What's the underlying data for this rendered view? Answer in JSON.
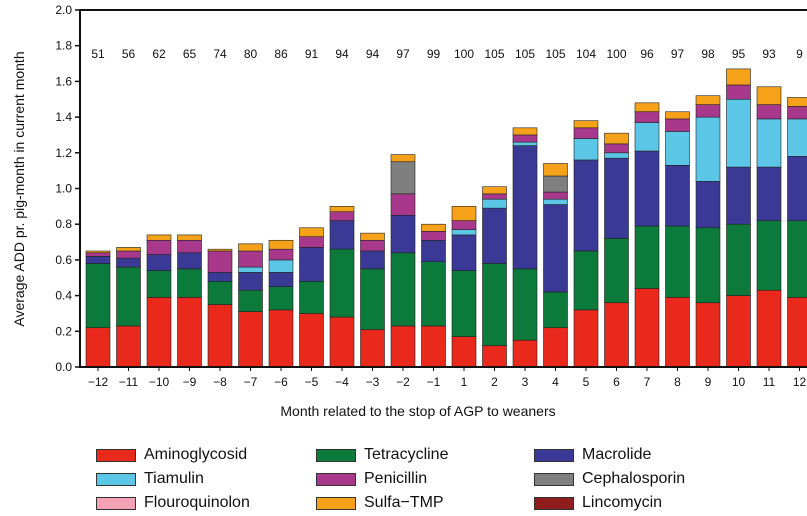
{
  "chart_data": {
    "type": "bar",
    "stacked": true,
    "xlabel": "Month related to the stop of AGP to weaners",
    "ylabel": "Average ADD pr. pig-month in current month",
    "ylim": [
      0,
      2.0
    ],
    "yticks": [
      "0.0",
      "0.2",
      "0.4",
      "0.6",
      "0.8",
      "1.0",
      "1.2",
      "1.4",
      "1.6",
      "1.8",
      "2.0"
    ],
    "categories": [
      "-12",
      "-11",
      "-10",
      "-9",
      "-8",
      "-7",
      "-6",
      "-5",
      "-4",
      "-3",
      "-2",
      "-1",
      "1",
      "2",
      "3",
      "4",
      "5",
      "6",
      "7",
      "8",
      "9",
      "10",
      "11",
      "12"
    ],
    "counts": [
      "51",
      "56",
      "62",
      "65",
      "74",
      "80",
      "86",
      "91",
      "94",
      "94",
      "97",
      "99",
      "100",
      "105",
      "105",
      "105",
      "104",
      "100",
      "96",
      "97",
      "98",
      "95",
      "93",
      "9"
    ],
    "series": [
      {
        "name": "Aminoglycosid",
        "color": "#e8291c",
        "values": [
          0.22,
          0.23,
          0.39,
          0.39,
          0.35,
          0.31,
          0.32,
          0.3,
          0.28,
          0.21,
          0.23,
          0.23,
          0.17,
          0.12,
          0.15,
          0.22,
          0.32,
          0.36,
          0.44,
          0.39,
          0.36,
          0.4,
          0.43,
          0.39
        ]
      },
      {
        "name": "Tetracycline",
        "color": "#0b7a3a",
        "values": [
          0.36,
          0.33,
          0.15,
          0.16,
          0.13,
          0.12,
          0.13,
          0.18,
          0.38,
          0.34,
          0.41,
          0.36,
          0.37,
          0.46,
          0.4,
          0.2,
          0.33,
          0.36,
          0.35,
          0.4,
          0.42,
          0.4,
          0.39,
          0.43
        ]
      },
      {
        "name": "Macrolide",
        "color": "#3a3a96",
        "values": [
          0.04,
          0.05,
          0.09,
          0.09,
          0.05,
          0.1,
          0.08,
          0.19,
          0.16,
          0.1,
          0.21,
          0.12,
          0.2,
          0.31,
          0.69,
          0.49,
          0.51,
          0.45,
          0.42,
          0.34,
          0.26,
          0.32,
          0.3,
          0.36
        ]
      },
      {
        "name": "Tiamulin",
        "color": "#5bc6e6",
        "values": [
          0.0,
          0.0,
          0.0,
          0.0,
          0.0,
          0.03,
          0.07,
          0.0,
          0.0,
          0.0,
          0.0,
          0.0,
          0.03,
          0.05,
          0.02,
          0.03,
          0.12,
          0.03,
          0.16,
          0.19,
          0.36,
          0.38,
          0.27,
          0.21
        ]
      },
      {
        "name": "Penicillin",
        "color": "#a8388c",
        "values": [
          0.02,
          0.04,
          0.08,
          0.07,
          0.12,
          0.09,
          0.06,
          0.06,
          0.05,
          0.06,
          0.12,
          0.05,
          0.05,
          0.03,
          0.04,
          0.04,
          0.06,
          0.05,
          0.06,
          0.07,
          0.07,
          0.08,
          0.08,
          0.07
        ]
      },
      {
        "name": "Cephalosporin",
        "color": "#7f7f7f",
        "values": [
          0.0,
          0.0,
          0.0,
          0.0,
          0.0,
          0.0,
          0.0,
          0.0,
          0.0,
          0.0,
          0.18,
          0.0,
          0.0,
          0.0,
          0.0,
          0.09,
          0.0,
          0.0,
          0.0,
          0.0,
          0.0,
          0.0,
          0.0,
          0.0
        ]
      },
      {
        "name": "Flouroquinolon",
        "color": "#f4a3b6",
        "values": [
          0.0,
          0.0,
          0.0,
          0.0,
          0.0,
          0.0,
          0.0,
          0.0,
          0.0,
          0.0,
          0.0,
          0.0,
          0.0,
          0.0,
          0.0,
          0.0,
          0.0,
          0.0,
          0.0,
          0.0,
          0.0,
          0.0,
          0.0,
          0.0
        ]
      },
      {
        "name": "Sulfa-TMP",
        "color": "#f5a21a",
        "values": [
          0.01,
          0.02,
          0.03,
          0.03,
          0.01,
          0.04,
          0.05,
          0.05,
          0.03,
          0.04,
          0.04,
          0.04,
          0.08,
          0.04,
          0.04,
          0.07,
          0.04,
          0.06,
          0.05,
          0.04,
          0.05,
          0.09,
          0.1,
          0.05
        ]
      },
      {
        "name": "Lincomycin",
        "color": "#8f1d1d",
        "values": [
          0.0,
          0.0,
          0.0,
          0.0,
          0.0,
          0.0,
          0.0,
          0.0,
          0.0,
          0.0,
          0.0,
          0.0,
          0.0,
          0.0,
          0.0,
          0.0,
          0.0,
          0.0,
          0.0,
          0.0,
          0.0,
          0.0,
          0.0,
          0.0
        ]
      }
    ]
  },
  "legend": {
    "items": [
      {
        "label": "Aminoglycosid",
        "color": "#e8291c"
      },
      {
        "label": "Tetracycline",
        "color": "#0b7a3a"
      },
      {
        "label": "Macrolide",
        "color": "#3a3a96"
      },
      {
        "label": "Tiamulin",
        "color": "#5bc6e6"
      },
      {
        "label": "Penicillin",
        "color": "#a8388c"
      },
      {
        "label": "Cephalosporin",
        "color": "#7f7f7f"
      },
      {
        "label": "Flouroquinolon",
        "color": "#f4a3b6"
      },
      {
        "label": "Sulfa-TMP",
        "color": "#f5a21a"
      },
      {
        "label": "Lincomycin",
        "color": "#8f1d1d"
      }
    ]
  }
}
